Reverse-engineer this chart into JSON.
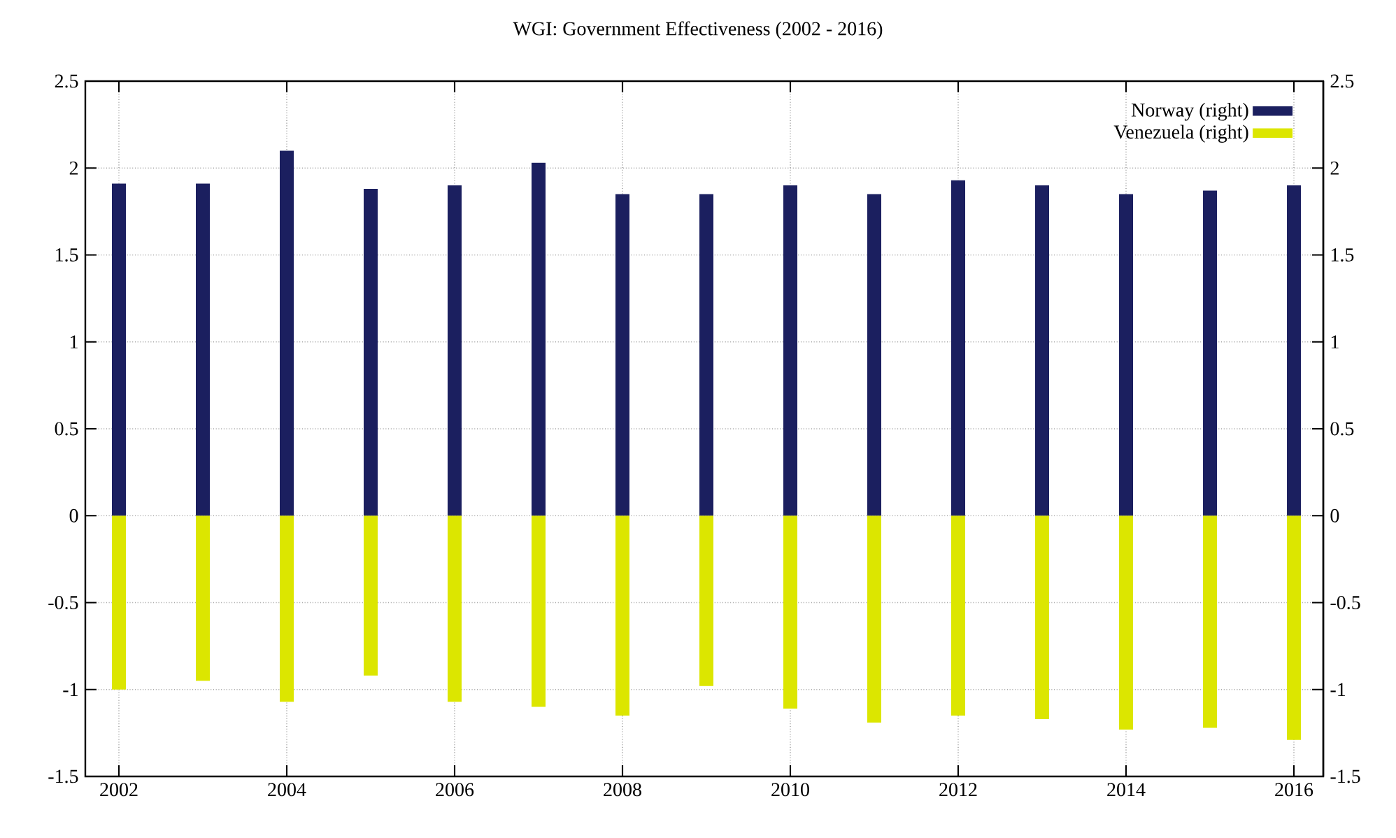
{
  "chart_data": {
    "type": "bar",
    "title": "WGI: Government Effectiveness (2002 - 2016)",
    "x": [
      2002,
      2003,
      2004,
      2005,
      2006,
      2007,
      2008,
      2009,
      2010,
      2011,
      2012,
      2013,
      2014,
      2015,
      2016
    ],
    "series": [
      {
        "name": "Norway (right)",
        "color": "#1b1f5f",
        "axis": "y2",
        "values": [
          1.91,
          1.91,
          2.1,
          1.88,
          1.9,
          2.03,
          1.85,
          1.85,
          1.9,
          1.85,
          1.93,
          1.9,
          1.85,
          1.87,
          1.9
        ]
      },
      {
        "name": "Venezuela (right)",
        "color": "#dce600",
        "axis": "y2",
        "values": [
          -1.0,
          -0.95,
          -1.07,
          -0.92,
          -1.07,
          -1.1,
          -1.15,
          -0.98,
          -1.11,
          -1.19,
          -1.15,
          -1.17,
          -1.23,
          -1.22,
          -1.29
        ]
      }
    ],
    "xlim": [
      2001.6,
      2016.35
    ],
    "xticks": [
      2002,
      2004,
      2006,
      2008,
      2010,
      2012,
      2014,
      2016
    ],
    "ylim": [
      -1.5,
      2.5
    ],
    "yticks": [
      -1.5,
      -1,
      -0.5,
      0,
      0.5,
      1,
      1.5,
      2,
      2.5
    ],
    "y2lim": [
      -1.5,
      2.5
    ],
    "y2ticks": [
      -1.5,
      -1,
      -0.5,
      0,
      0.5,
      1,
      1.5,
      2,
      2.5
    ],
    "stacked": true,
    "grid": true,
    "legend": "top right"
  }
}
